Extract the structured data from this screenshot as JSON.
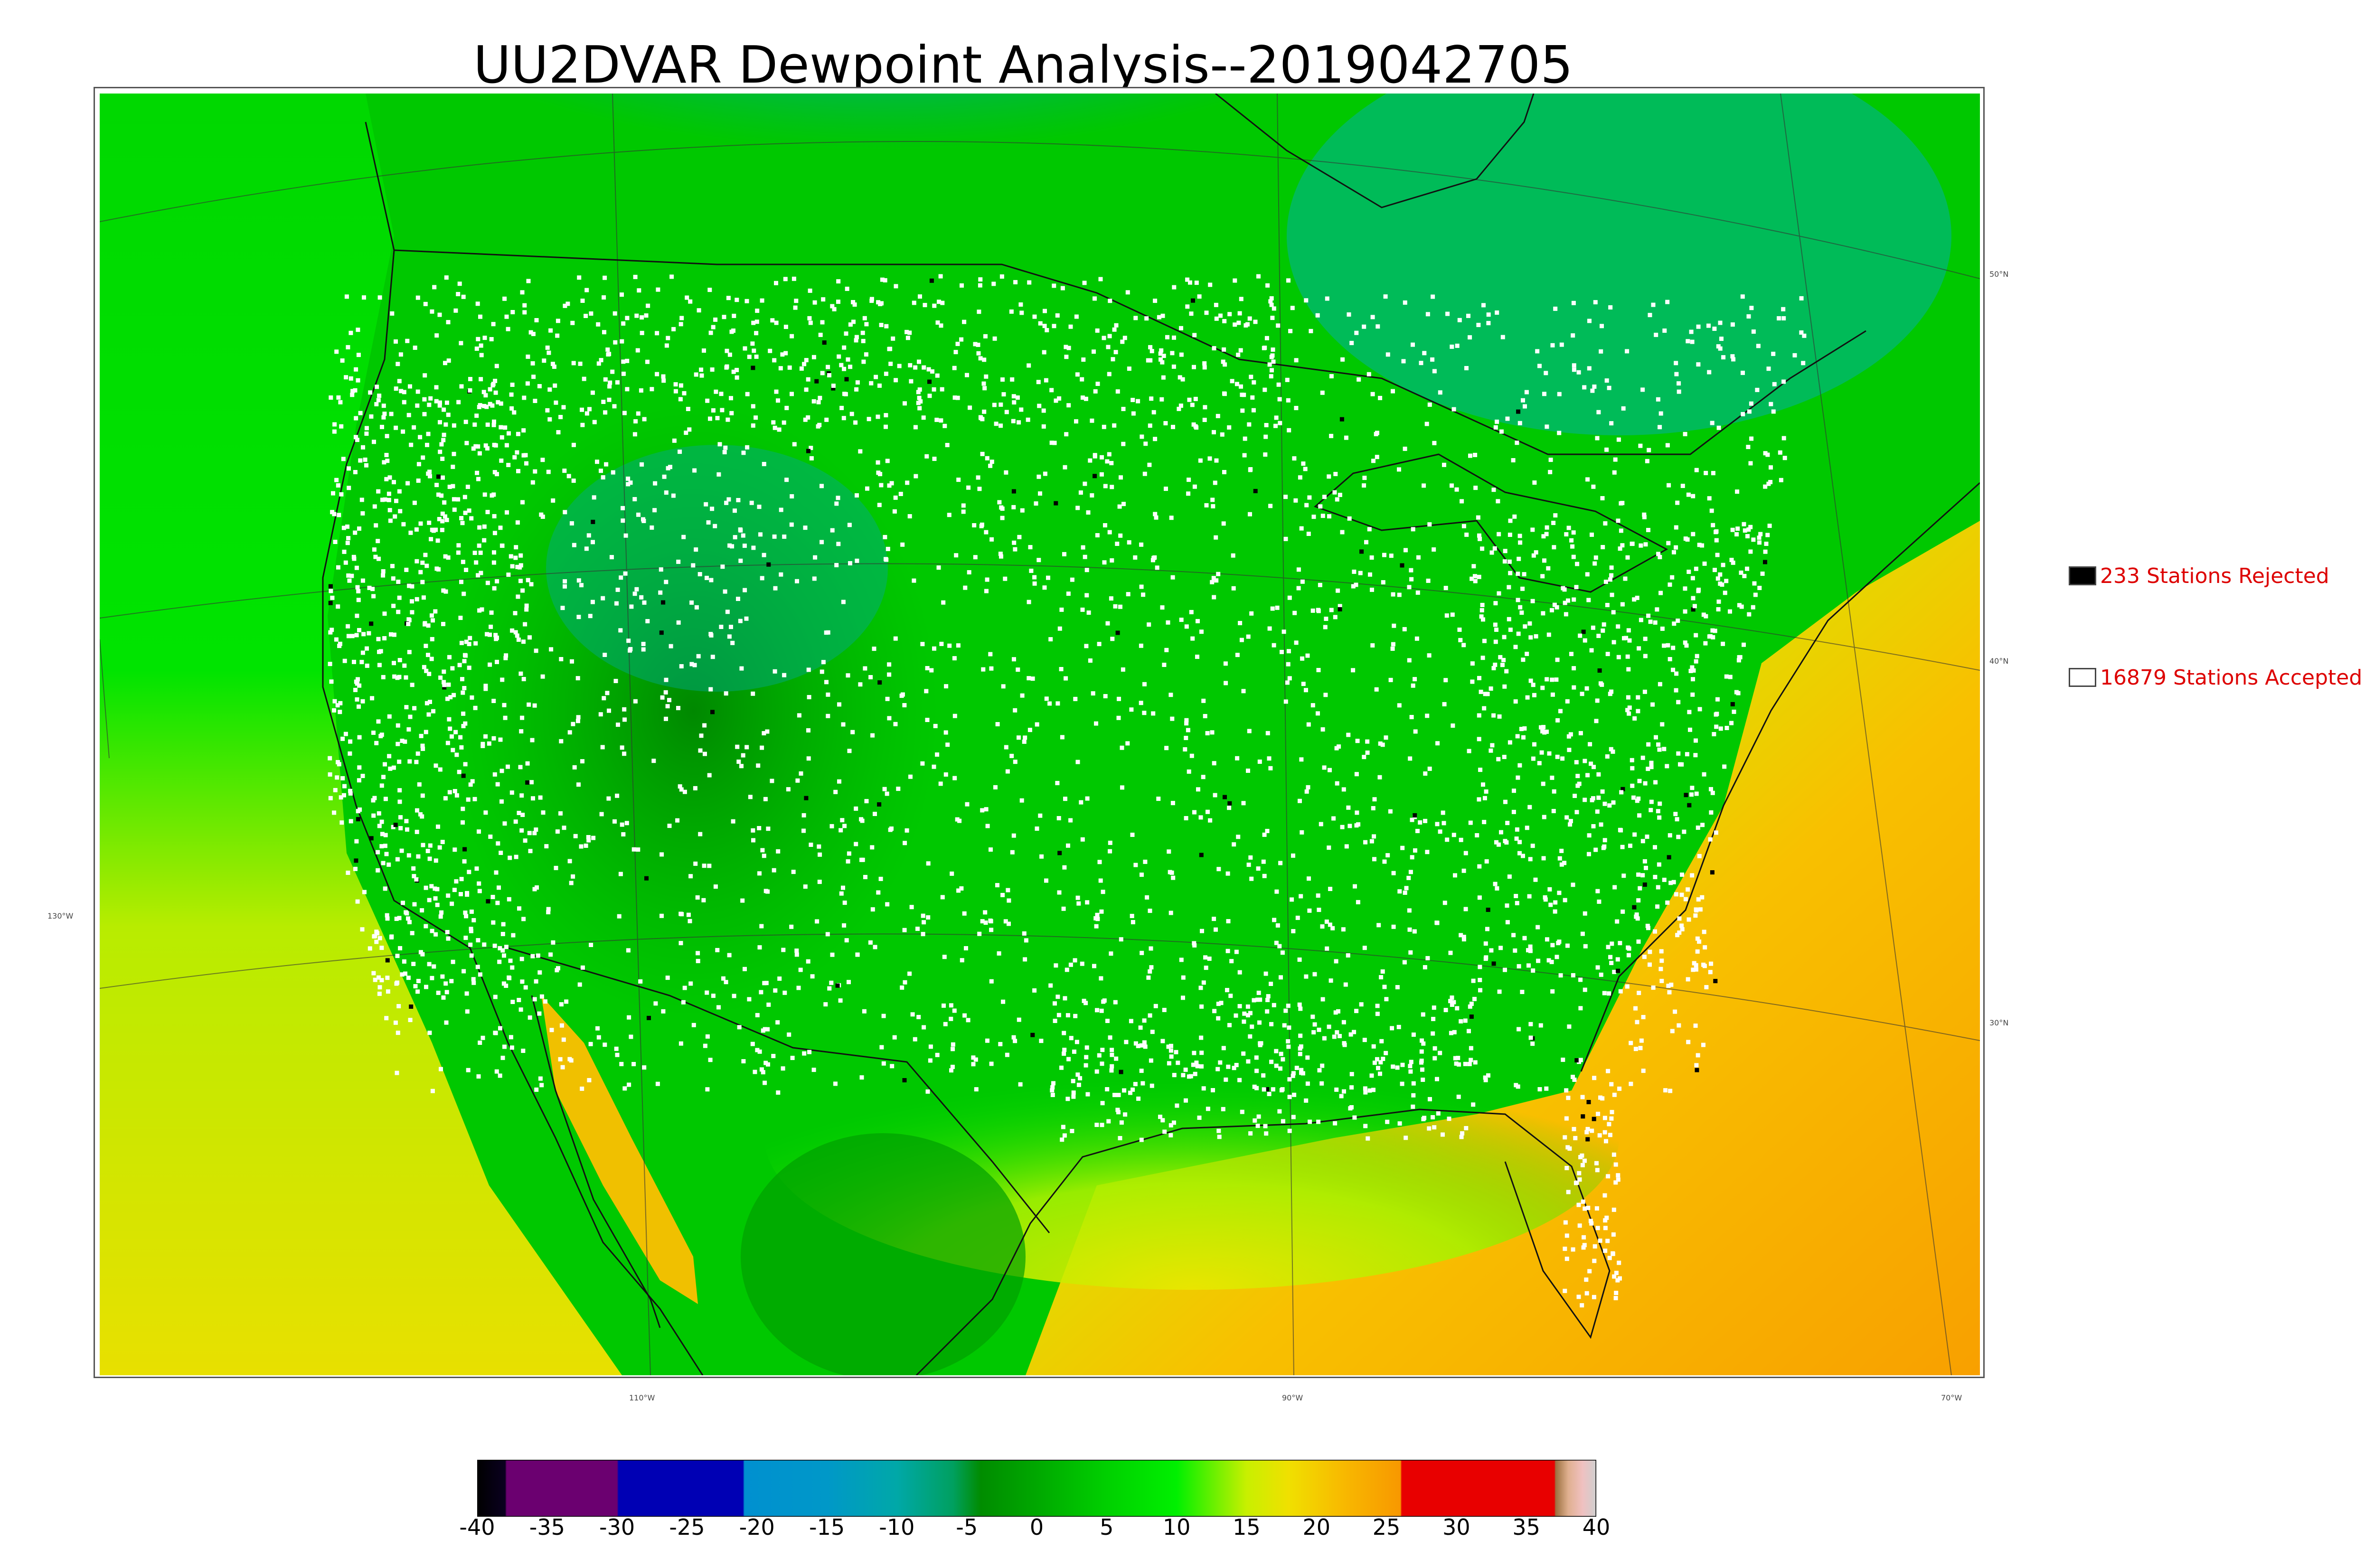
{
  "title": "UU2DVAR Dewpoint Analysis--2019042705",
  "legend": {
    "rejected": {
      "label": "233 Stations Rejected",
      "color": "#000000"
    },
    "accepted": {
      "label": "16879 Stations Accepted",
      "color": "#ffffff"
    }
  },
  "graticule": {
    "latitudes": [
      "50°N",
      "40°N",
      "30°N"
    ],
    "longitudes": [
      "130°W",
      "110°W",
      "90°W",
      "70°W"
    ]
  },
  "colorbar": {
    "range": [
      -40,
      40
    ],
    "ticks": [
      "-40",
      "-35",
      "-30",
      "-25",
      "-20",
      "-15",
      "-10",
      "-5",
      "0",
      "5",
      "10",
      "15",
      "20",
      "25",
      "30",
      "35",
      "40"
    ],
    "stops": [
      {
        "v": -40,
        "c": "#000000"
      },
      {
        "v": -38,
        "c": "#0a0020"
      },
      {
        "v": -37.9,
        "c": "#6b0070"
      },
      {
        "v": -30,
        "c": "#6b0070"
      },
      {
        "v": -29.9,
        "c": "#0000b4"
      },
      {
        "v": -21,
        "c": "#0000b4"
      },
      {
        "v": -20.9,
        "c": "#0090d0"
      },
      {
        "v": -15,
        "c": "#0098c8"
      },
      {
        "v": -10,
        "c": "#00a8a8"
      },
      {
        "v": -6,
        "c": "#00a060"
      },
      {
        "v": -4,
        "c": "#008c00"
      },
      {
        "v": 0,
        "c": "#00a800"
      },
      {
        "v": 5,
        "c": "#00d000"
      },
      {
        "v": 10,
        "c": "#00f000"
      },
      {
        "v": 15,
        "c": "#c8f000"
      },
      {
        "v": 18,
        "c": "#f0e000"
      },
      {
        "v": 22,
        "c": "#f8b800"
      },
      {
        "v": 26,
        "c": "#f89800"
      },
      {
        "v": 26.1,
        "c": "#e80000"
      },
      {
        "v": 37,
        "c": "#e80000"
      },
      {
        "v": 37.1,
        "c": "#9c7040"
      },
      {
        "v": 38,
        "c": "#e0b090"
      },
      {
        "v": 39,
        "c": "#f0c0c0"
      },
      {
        "v": 40,
        "c": "#d0d0d0"
      }
    ]
  },
  "colors": {
    "map_background": "#00c800",
    "station_accepted": "#ffffff",
    "station_rejected": "#000000",
    "legend_text": "#dd0000"
  }
}
